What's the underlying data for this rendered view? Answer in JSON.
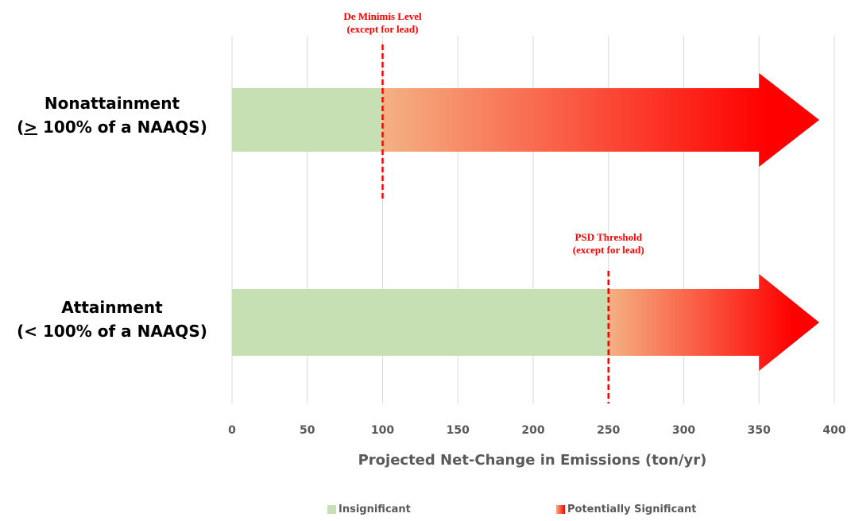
{
  "chart_data": {
    "type": "bar",
    "orientation": "horizontal",
    "categories": [
      {
        "name": "Nonattainment",
        "qualifier_prefix": "(",
        "qualifier_symbol": ">",
        "qualifier_rest": " 100% of a NAAQS)"
      },
      {
        "name": "Attainment",
        "qualifier_prefix": "(< 100% of a NAAQS)",
        "qualifier_symbol": "",
        "qualifier_rest": ""
      }
    ],
    "series": [
      {
        "name": "Insignificant",
        "color": "#c6e0b4",
        "values": [
          100,
          250
        ]
      },
      {
        "name": "Potentially Significant",
        "color_start": "#f4b183",
        "color_end": "#ff0000",
        "start": [
          100,
          250
        ],
        "end": [
          390,
          390
        ]
      }
    ],
    "thresholds": [
      {
        "category_index": 0,
        "value": 100,
        "label_line1": "De Minimis Level",
        "label_line2": "(except for lead)",
        "color": "#ff0000"
      },
      {
        "category_index": 1,
        "value": 250,
        "label_line1": "PSD Threshold",
        "label_line2": "(except for lead)",
        "color": "#ff0000"
      }
    ],
    "xlabel": "Projected Net-Change in Emissions (ton/yr)",
    "xlim": [
      0,
      400
    ],
    "xticks": [
      0,
      50,
      100,
      150,
      200,
      250,
      300,
      350,
      400
    ],
    "grid": true,
    "legend_position": "bottom"
  }
}
